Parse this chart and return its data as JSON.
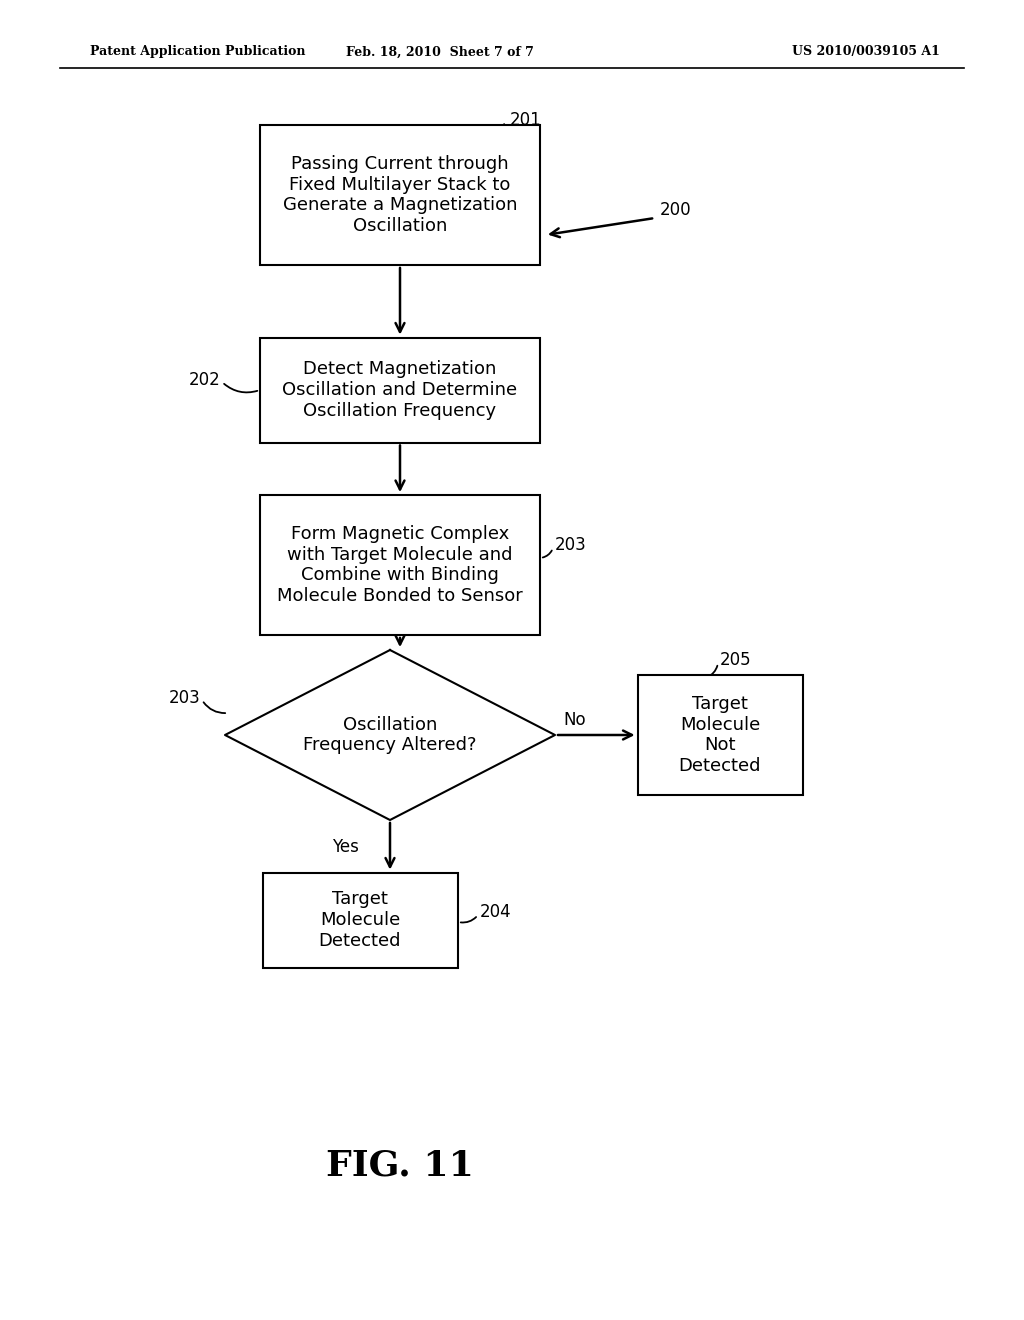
{
  "background_color": "#ffffff",
  "header_left": "Patent Application Publication",
  "header_center": "Feb. 18, 2010  Sheet 7 of 7",
  "header_right": "US 2010/0039105 A1",
  "figure_label": "FIG. 11"
}
